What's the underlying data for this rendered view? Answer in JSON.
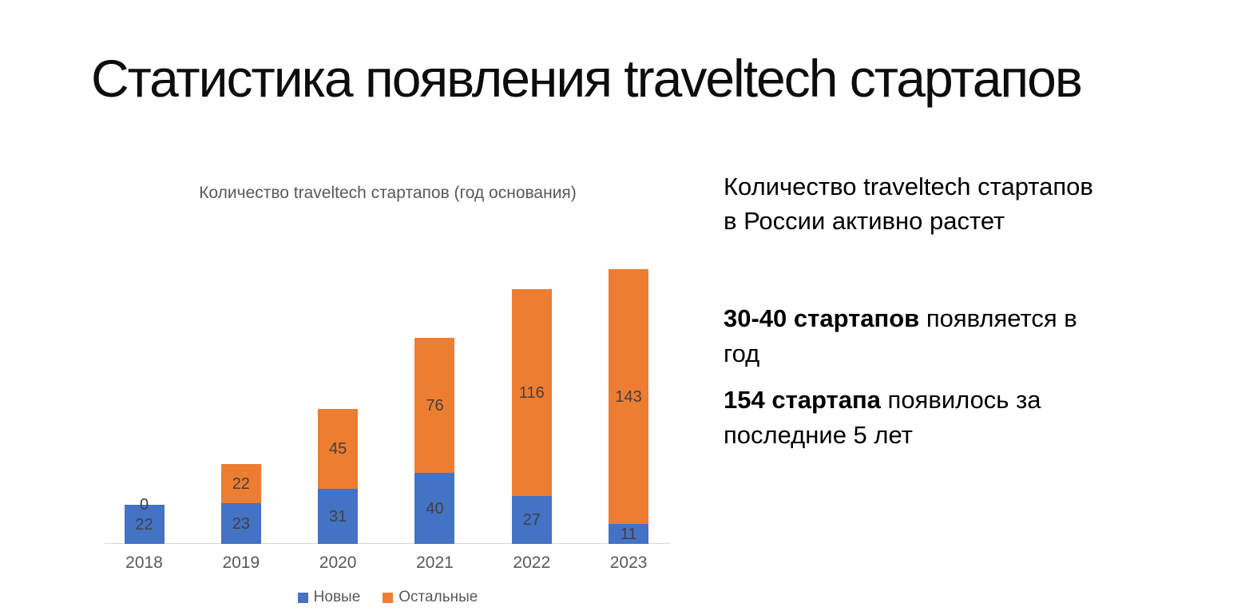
{
  "slide": {
    "title": "Статистика появления traveltech стартапов"
  },
  "chart_data": {
    "type": "bar",
    "stacked": true,
    "title": "Количество traveltech стартапов (год основания)",
    "categories": [
      "2018",
      "2019",
      "2020",
      "2021",
      "2022",
      "2023"
    ],
    "series": [
      {
        "name": "Новые",
        "color": "#4472C4",
        "values": [
          22,
          23,
          31,
          40,
          27,
          11
        ]
      },
      {
        "name": "Остальные",
        "color": "#ED7D31",
        "values": [
          0,
          22,
          45,
          76,
          116,
          143
        ]
      }
    ],
    "data_labels": true,
    "grid": false,
    "legend_position": "bottom",
    "ylim": [
      0,
      160
    ],
    "xlabel": "",
    "ylabel": ""
  },
  "right_panel": {
    "insight": "Количество traveltech стартапов\nв России активно растет",
    "stats": [
      {
        "bold": "30-40 стартапов",
        "rest": " появляется в\nгод"
      },
      {
        "bold": "154 стартапа",
        "rest": " появилось за\nпоследние 5 лет"
      }
    ]
  },
  "colors": {
    "series_new": "#4472C4",
    "series_rest": "#ED7D31",
    "bar_label": "#404040",
    "axis_text": "#595959",
    "axis_line": "#D9D9D9",
    "chart_title": "#595959",
    "title_text": "#0D0D0D",
    "body_text": "#000000",
    "background": "#FFFFFF"
  }
}
